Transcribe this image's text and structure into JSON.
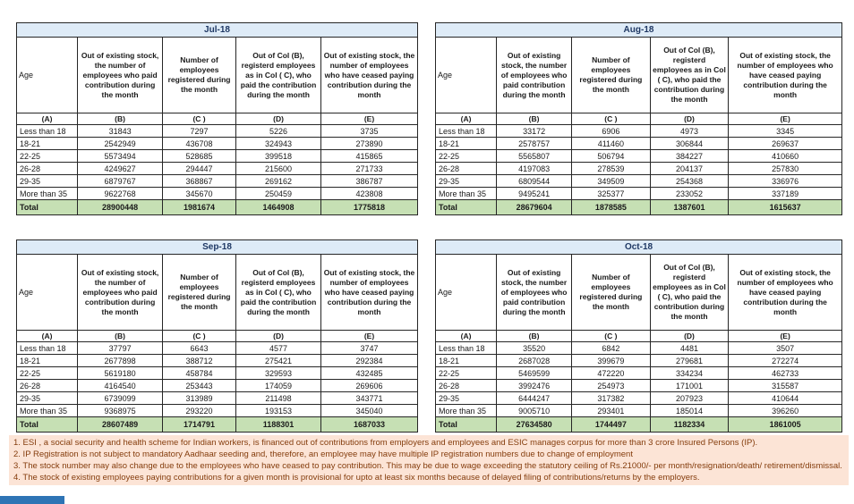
{
  "columns": {
    "age_label": "Age",
    "col_b": "Out of existing stock, the number of employees who paid contribution during the month",
    "col_c": "Number of employees registered during the month",
    "col_d": "Out of Col (B), registerd employees as in Col ( C), who paid the contribution during the month",
    "col_e": "Out of existing stock, the number of employees who have ceased paying contribution during the month",
    "letters": [
      "(A)",
      "(B)",
      "(C )",
      "(D)",
      "(E)"
    ]
  },
  "age_groups": [
    "Less than 18",
    "18-21",
    "22-25",
    "26-28",
    "29-35",
    "More than 35"
  ],
  "labels": {
    "total": "Total"
  },
  "months": [
    {
      "title": "Jul-18",
      "rows": [
        [
          "31843",
          "7297",
          "5226",
          "3735"
        ],
        [
          "2542949",
          "436708",
          "324943",
          "273890"
        ],
        [
          "5573494",
          "528685",
          "399518",
          "415865"
        ],
        [
          "4249627",
          "294447",
          "215600",
          "271733"
        ],
        [
          "6879767",
          "368867",
          "269162",
          "386787"
        ],
        [
          "9622768",
          "345670",
          "250459",
          "423808"
        ]
      ],
      "total": [
        "28900448",
        "1981674",
        "1464908",
        "1775818"
      ]
    },
    {
      "title": "Aug-18",
      "rows": [
        [
          "33172",
          "6906",
          "4973",
          "3345"
        ],
        [
          "2578757",
          "411460",
          "306844",
          "269637"
        ],
        [
          "5565807",
          "506794",
          "384227",
          "410660"
        ],
        [
          "4197083",
          "278539",
          "204137",
          "257830"
        ],
        [
          "6809544",
          "349509",
          "254368",
          "336976"
        ],
        [
          "9495241",
          "325377",
          "233052",
          "337189"
        ]
      ],
      "total": [
        "28679604",
        "1878585",
        "1387601",
        "1615637"
      ]
    },
    {
      "title": "Sep-18",
      "rows": [
        [
          "37797",
          "6643",
          "4577",
          "3747"
        ],
        [
          "2677898",
          "388712",
          "275421",
          "292384"
        ],
        [
          "5619180",
          "458784",
          "329593",
          "432485"
        ],
        [
          "4164540",
          "253443",
          "174059",
          "269606"
        ],
        [
          "6739099",
          "313989",
          "211498",
          "343771"
        ],
        [
          "9368975",
          "293220",
          "193153",
          "345040"
        ]
      ],
      "total": [
        "28607489",
        "1714791",
        "1188301",
        "1687033"
      ]
    },
    {
      "title": "Oct-18",
      "rows": [
        [
          "35520",
          "6842",
          "4481",
          "3507"
        ],
        [
          "2687028",
          "399679",
          "279681",
          "272274"
        ],
        [
          "5469599",
          "472220",
          "334234",
          "462733"
        ],
        [
          "3992476",
          "254973",
          "171001",
          "315587"
        ],
        [
          "6444247",
          "317382",
          "207923",
          "410644"
        ],
        [
          "9005710",
          "293401",
          "185014",
          "396260"
        ]
      ],
      "total": [
        "27634580",
        "1744497",
        "1182334",
        "1861005"
      ]
    }
  ],
  "footnotes": [
    "1. ESI , a social security and health scheme for Indian workers, is financed out of contributions from employers and employees and ESIC manages corpus for more than 3 crore Insured Persons (IP).",
    "2. IP Registration is not subject to mandatory Aadhaar seeding and, therefore, an employee may have multiple IP registration numbers due to change of employment",
    "3. The stock number may also change due to the employees who have ceased to pay contribution. This may  be due to wage exceeding the statutory ceiling of  Rs.21000/- per month/resignation/death/ retirement/dismissal.",
    "4. The stock of existing employees paying contributions for a given month is provisional for upto at least six months because of delayed filing of contributions/returns by the employers."
  ],
  "colors": {
    "month_header_fill": "#DEEBF7",
    "month_header_text": "#1F3864",
    "total_row_fill": "#C6E0B4",
    "footnote_fill": "#FCE4D6",
    "footnote_text": "#843C0C",
    "bottom_bar_blue": "#2E74B5",
    "border": "#262626"
  }
}
